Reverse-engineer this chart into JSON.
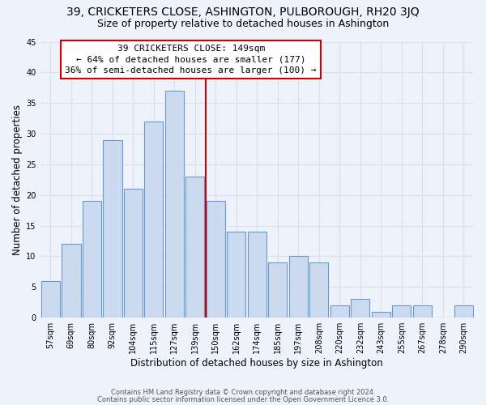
{
  "title": "39, CRICKETERS CLOSE, ASHINGTON, PULBOROUGH, RH20 3JQ",
  "subtitle": "Size of property relative to detached houses in Ashington",
  "xlabel": "Distribution of detached houses by size in Ashington",
  "ylabel": "Number of detached properties",
  "bar_labels": [
    "57sqm",
    "69sqm",
    "80sqm",
    "92sqm",
    "104sqm",
    "115sqm",
    "127sqm",
    "139sqm",
    "150sqm",
    "162sqm",
    "174sqm",
    "185sqm",
    "197sqm",
    "208sqm",
    "220sqm",
    "232sqm",
    "243sqm",
    "255sqm",
    "267sqm",
    "278sqm",
    "290sqm"
  ],
  "bar_values": [
    6,
    12,
    19,
    29,
    21,
    32,
    37,
    23,
    19,
    14,
    14,
    9,
    10,
    9,
    2,
    3,
    1,
    2,
    2,
    0,
    2
  ],
  "bar_color": "#ccdaf0",
  "bar_edge_color": "#6699cc",
  "marker_line_color": "#cc0000",
  "annotation_line1": "39 CRICKETERS CLOSE: 149sqm",
  "annotation_line2": "← 64% of detached houses are smaller (177)",
  "annotation_line3": "36% of semi-detached houses are larger (100) →",
  "annotation_box_color": "#cc0000",
  "ylim": [
    0,
    45
  ],
  "yticks": [
    0,
    5,
    10,
    15,
    20,
    25,
    30,
    35,
    40,
    45
  ],
  "footer1": "Contains HM Land Registry data © Crown copyright and database right 2024.",
  "footer2": "Contains public sector information licensed under the Open Government Licence 3.0.",
  "bg_color": "#eef2fa",
  "grid_color": "#d8e0f0",
  "title_fontsize": 10,
  "subtitle_fontsize": 9,
  "axis_label_fontsize": 8.5,
  "tick_fontsize": 7,
  "footer_fontsize": 6,
  "annot_fontsize": 8,
  "marker_bar_index": 8
}
